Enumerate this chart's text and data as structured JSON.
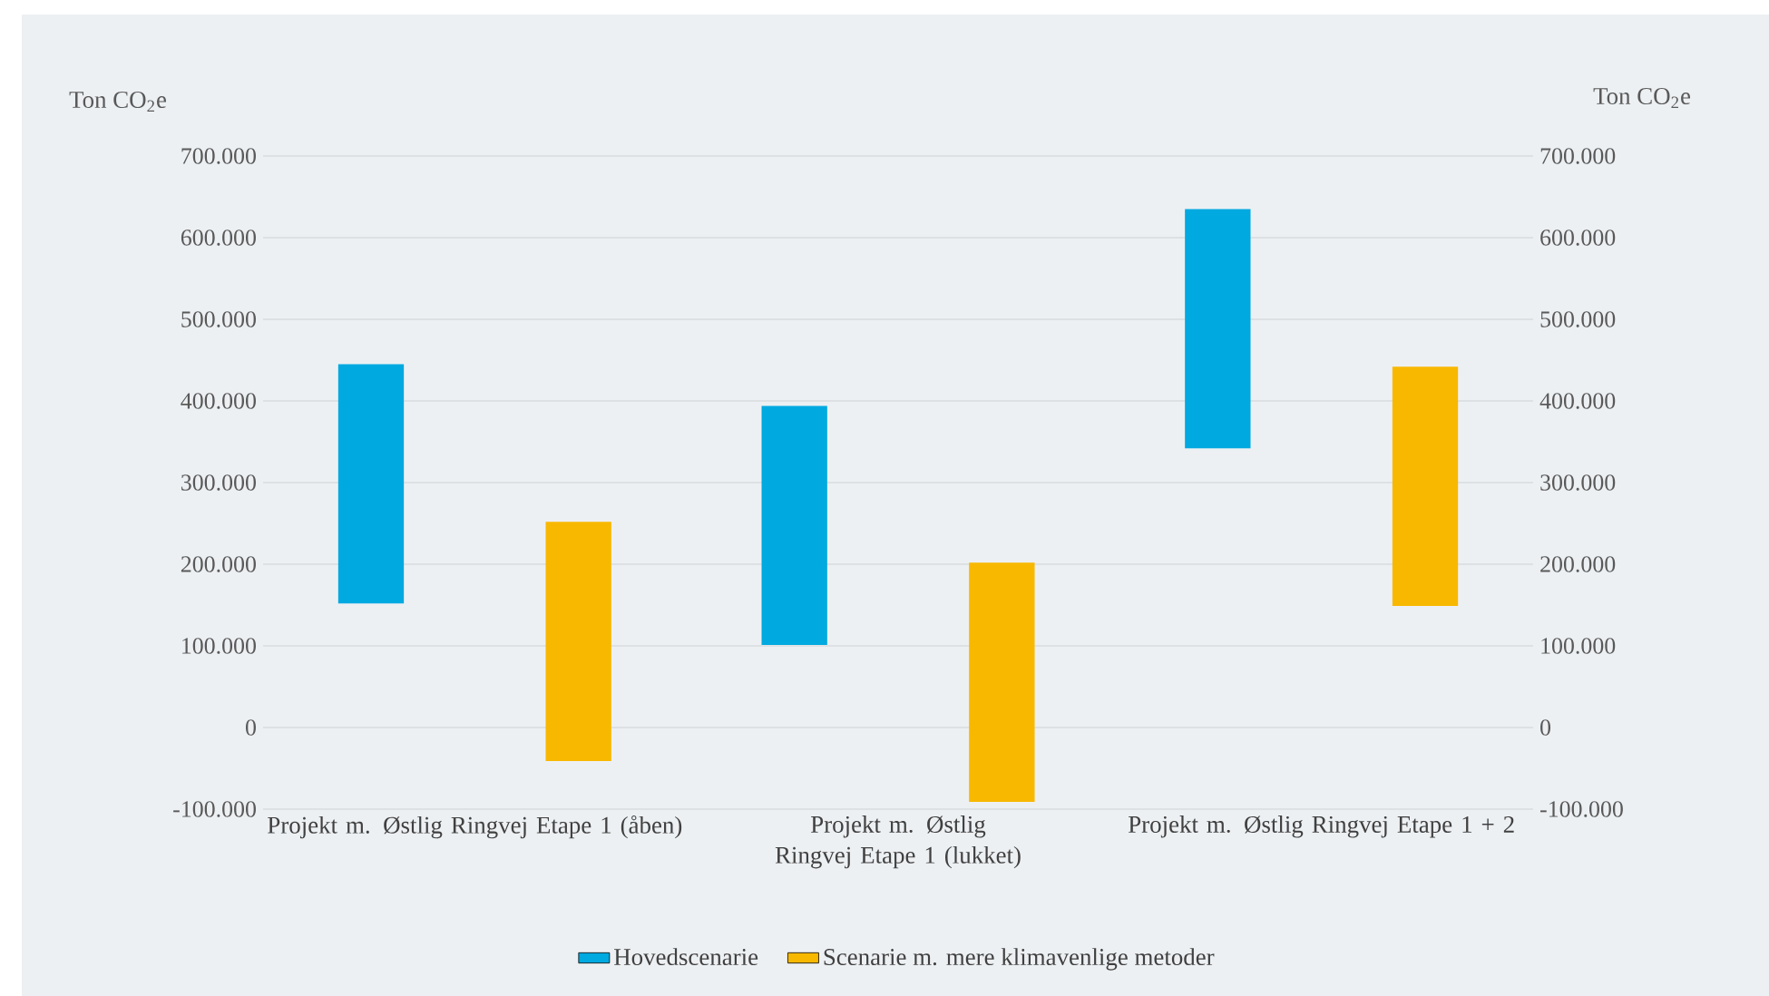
{
  "chart_data": {
    "type": "bar",
    "ylabel": "Ton CO$_{2}$e",
    "y2label": "Ton CO$_{2}$e",
    "categories": [
      "Projekt m. Østlig Ringvej Etape 1 (åben)",
      "Projekt m. Østlig Ringvej Etape 1 (lukket)",
      "Projekt m. Østlig Ringvej Etape 1 + 2"
    ],
    "series": [
      {
        "name": "Hovedscenarie",
        "color": "#00a9e0",
        "base": [
          152000,
          101000,
          342000
        ],
        "values": [
          293000,
          293000,
          293000
        ]
      },
      {
        "name": "Scenarie m. mere klimavenlige metoder",
        "color": "#f8b800",
        "base": [
          -41000,
          -91000,
          149000
        ],
        "values": [
          293000,
          293000,
          293000
        ]
      }
    ],
    "ylim": [
      -100000,
      700000
    ],
    "yticks": [
      {
        "value": -100000,
        "label": "-100.000"
      },
      {
        "value": 0,
        "label": "0"
      },
      {
        "value": 100000,
        "label": "100.000"
      },
      {
        "value": 200000,
        "label": "200.000"
      },
      {
        "value": 300000,
        "label": "300.000"
      },
      {
        "value": 400000,
        "label": "400.000"
      },
      {
        "value": 500000,
        "label": "500.000"
      },
      {
        "value": 600000,
        "label": "600.000"
      },
      {
        "value": 700000,
        "label": "700.000"
      }
    ],
    "y2lim": [
      -100000,
      700000
    ],
    "y2ticks": [
      {
        "value": -100000,
        "label": "-100.000"
      },
      {
        "value": 0,
        "label": "0"
      },
      {
        "value": 100000,
        "label": "100.000"
      },
      {
        "value": 200000,
        "label": "200.000"
      },
      {
        "value": 300000,
        "label": "300.000"
      },
      {
        "value": 400000,
        "label": "400.000"
      },
      {
        "value": 500000,
        "label": "500.000"
      },
      {
        "value": 600000,
        "label": "600.000"
      },
      {
        "value": 700000,
        "label": "700.000"
      }
    ],
    "grid": "y",
    "legend": "bottom"
  }
}
